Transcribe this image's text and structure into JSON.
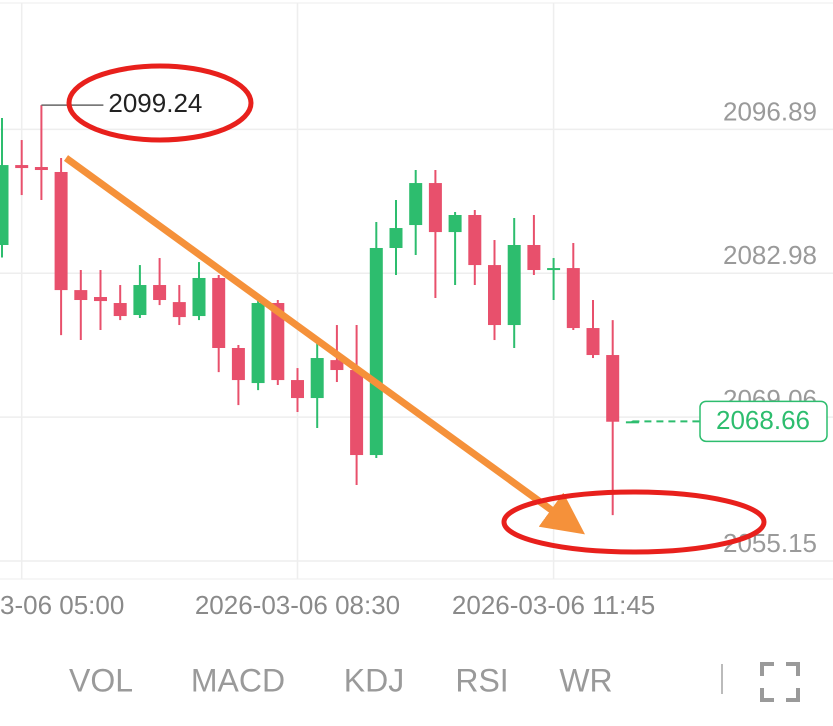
{
  "chart_data": {
    "type": "candlestick",
    "categories": [
      null,
      "3-06 05:00",
      null,
      null,
      null,
      null,
      null,
      null,
      null,
      null,
      null,
      null,
      null,
      null,
      null,
      "2026-03-06 08:30",
      null,
      null,
      null,
      null,
      null,
      null,
      null,
      null,
      null,
      null,
      null,
      null,
      "2026-03-06 11:45",
      null,
      null,
      null,
      null
    ],
    "open": [
      2085.71,
      2093.44,
      2093.25,
      2092.77,
      2081.35,
      2080.68,
      2080.1,
      2078.94,
      2081.84,
      2080.19,
      2078.84,
      2082.52,
      2075.75,
      2072.36,
      2080.1,
      2072.65,
      2070.91,
      2074.58,
      2073.62,
      2065.4,
      2085.42,
      2087.64,
      2091.7,
      2086.96,
      2088.61,
      2083.77,
      2077.97,
      2085.71,
      2083.29,
      2083.48,
      2077.68,
      2075.07,
      2068.6
    ],
    "high": [
      2097.99,
      2095.86,
      2099.24,
      2094.12,
      2083.29,
      2083.29,
      2081.84,
      2083.77,
      2084.45,
      2081.84,
      2084.06,
      2082.81,
      2076.04,
      2080.39,
      2080.39,
      2073.81,
      2076.52,
      2077.97,
      2077.97,
      2087.93,
      2090.06,
      2092.96,
      2092.96,
      2088.9,
      2089.09,
      2086.19,
      2088.32,
      2088.61,
      2084.45,
      2085.9,
      2080.39,
      2078.45,
      2068.7
    ],
    "low": [
      2084.5,
      2090.54,
      2090.06,
      2077.0,
      2076.52,
      2077.49,
      2078.45,
      2078.65,
      2079.9,
      2077.97,
      2078.45,
      2073.42,
      2070.23,
      2071.68,
      2072.17,
      2069.56,
      2068.01,
      2072.46,
      2062.5,
      2065.11,
      2082.81,
      2084.74,
      2080.58,
      2081.84,
      2081.84,
      2076.52,
      2075.75,
      2082.81,
      2080.39,
      2077.49,
      2074.78,
      2059.59,
      2068.5
    ],
    "close": [
      2093.44,
      2093.15,
      2092.96,
      2081.35,
      2080.39,
      2080.29,
      2078.84,
      2081.84,
      2080.39,
      2078.74,
      2082.52,
      2075.75,
      2072.65,
      2080.1,
      2072.65,
      2070.91,
      2074.78,
      2073.62,
      2065.4,
      2085.42,
      2087.35,
      2091.7,
      2086.96,
      2088.61,
      2083.77,
      2077.97,
      2085.71,
      2083.29,
      2083.48,
      2077.68,
      2075.07,
      2068.62,
      2068.66
    ],
    "up_color": "#2dbd6e",
    "down_color": "#e8506c",
    "ylim": [
      2053.51,
      2109.4
    ],
    "yticks": [
      2096.89,
      2082.98,
      2069.06,
      2055.15
    ],
    "grid": true,
    "high_marker": 2099.24,
    "last_price": 2068.66
  },
  "toolbar": {
    "tabs": [
      "VOL",
      "MACD",
      "KDJ",
      "RSI",
      "WR"
    ]
  }
}
